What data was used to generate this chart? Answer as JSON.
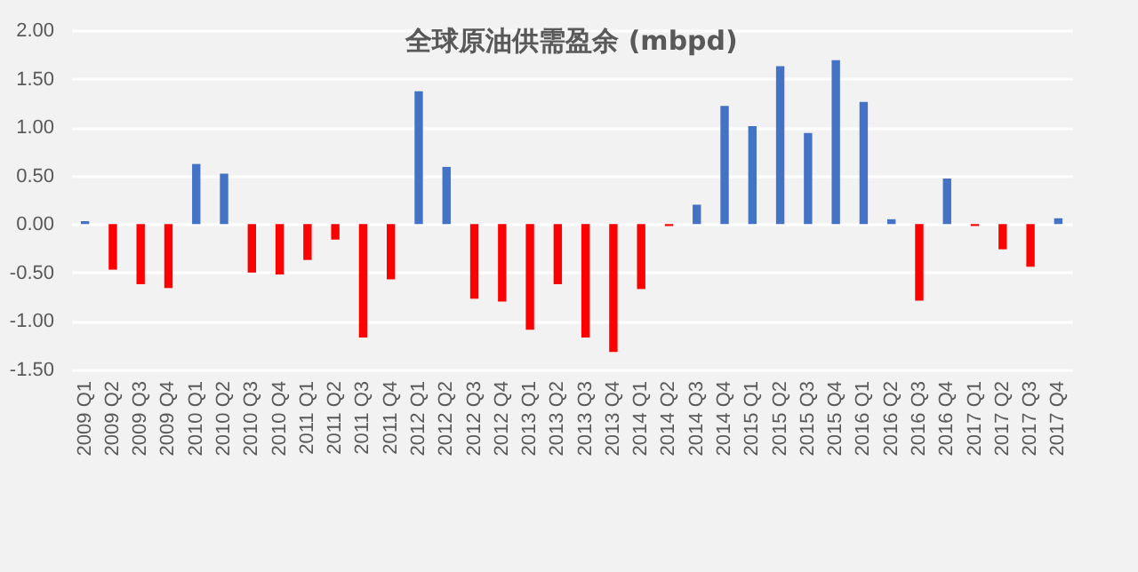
{
  "chart_data": {
    "type": "bar",
    "title": "全球原油供需盈余 (mbpd)",
    "categories": [
      "2009 Q1",
      "2009 Q2",
      "2009 Q3",
      "2009 Q4",
      "2010 Q1",
      "2010 Q2",
      "2010 Q3",
      "2010 Q4",
      "2011 Q1",
      "2011 Q2",
      "2011 Q3",
      "2011 Q4",
      "2012 Q1",
      "2012 Q2",
      "2012 Q3",
      "2012 Q4",
      "2013 Q1",
      "2013 Q2",
      "2013 Q3",
      "2013 Q4",
      "2014 Q1",
      "2014 Q2",
      "2014 Q3",
      "2014 Q4",
      "2015 Q1",
      "2015 Q2",
      "2015 Q3",
      "2015 Q4",
      "2016 Q1",
      "2016 Q2",
      "2016 Q3",
      "2016 Q4",
      "2017 Q1",
      "2017 Q2",
      "2017 Q3",
      "2017 Q4"
    ],
    "values": [
      0.03,
      -0.47,
      -0.62,
      -0.66,
      0.62,
      0.52,
      -0.5,
      -0.52,
      -0.37,
      -0.16,
      -1.17,
      -0.57,
      1.37,
      0.59,
      -0.77,
      -0.8,
      -1.09,
      -0.62,
      -1.17,
      -1.32,
      -0.67,
      -0.02,
      0.2,
      1.22,
      1.01,
      1.63,
      0.94,
      1.69,
      1.26,
      0.05,
      -0.79,
      0.47,
      -0.02,
      -0.26,
      -0.44,
      0.06
    ],
    "colors": [
      "#4472c4",
      "#ff0000",
      "#ff0000",
      "#ff0000",
      "#4472c4",
      "#4472c4",
      "#ff0000",
      "#ff0000",
      "#ff0000",
      "#ff0000",
      "#ff0000",
      "#ff0000",
      "#4472c4",
      "#4472c4",
      "#ff0000",
      "#ff0000",
      "#ff0000",
      "#ff0000",
      "#ff0000",
      "#ff0000",
      "#ff0000",
      "#ff0000",
      "#4472c4",
      "#4472c4",
      "#4472c4",
      "#4472c4",
      "#4472c4",
      "#4472c4",
      "#4472c4",
      "#4472c4",
      "#ff0000",
      "#4472c4",
      "#ff0000",
      "#ff0000",
      "#ff0000",
      "#4472c4"
    ],
    "ylim": [
      -1.5,
      2
    ],
    "yticks": [
      {
        "value": -1.5,
        "label": "-1.50"
      },
      {
        "value": -1,
        "label": "-1.00"
      },
      {
        "value": -0.5,
        "label": "-0.50"
      },
      {
        "value": 0,
        "label": "0.00"
      },
      {
        "value": 0.5,
        "label": "0.50"
      },
      {
        "value": 1,
        "label": "1.00"
      },
      {
        "value": 1.5,
        "label": "1.50"
      },
      {
        "value": 2,
        "label": "2.00"
      }
    ],
    "grid": "y"
  }
}
